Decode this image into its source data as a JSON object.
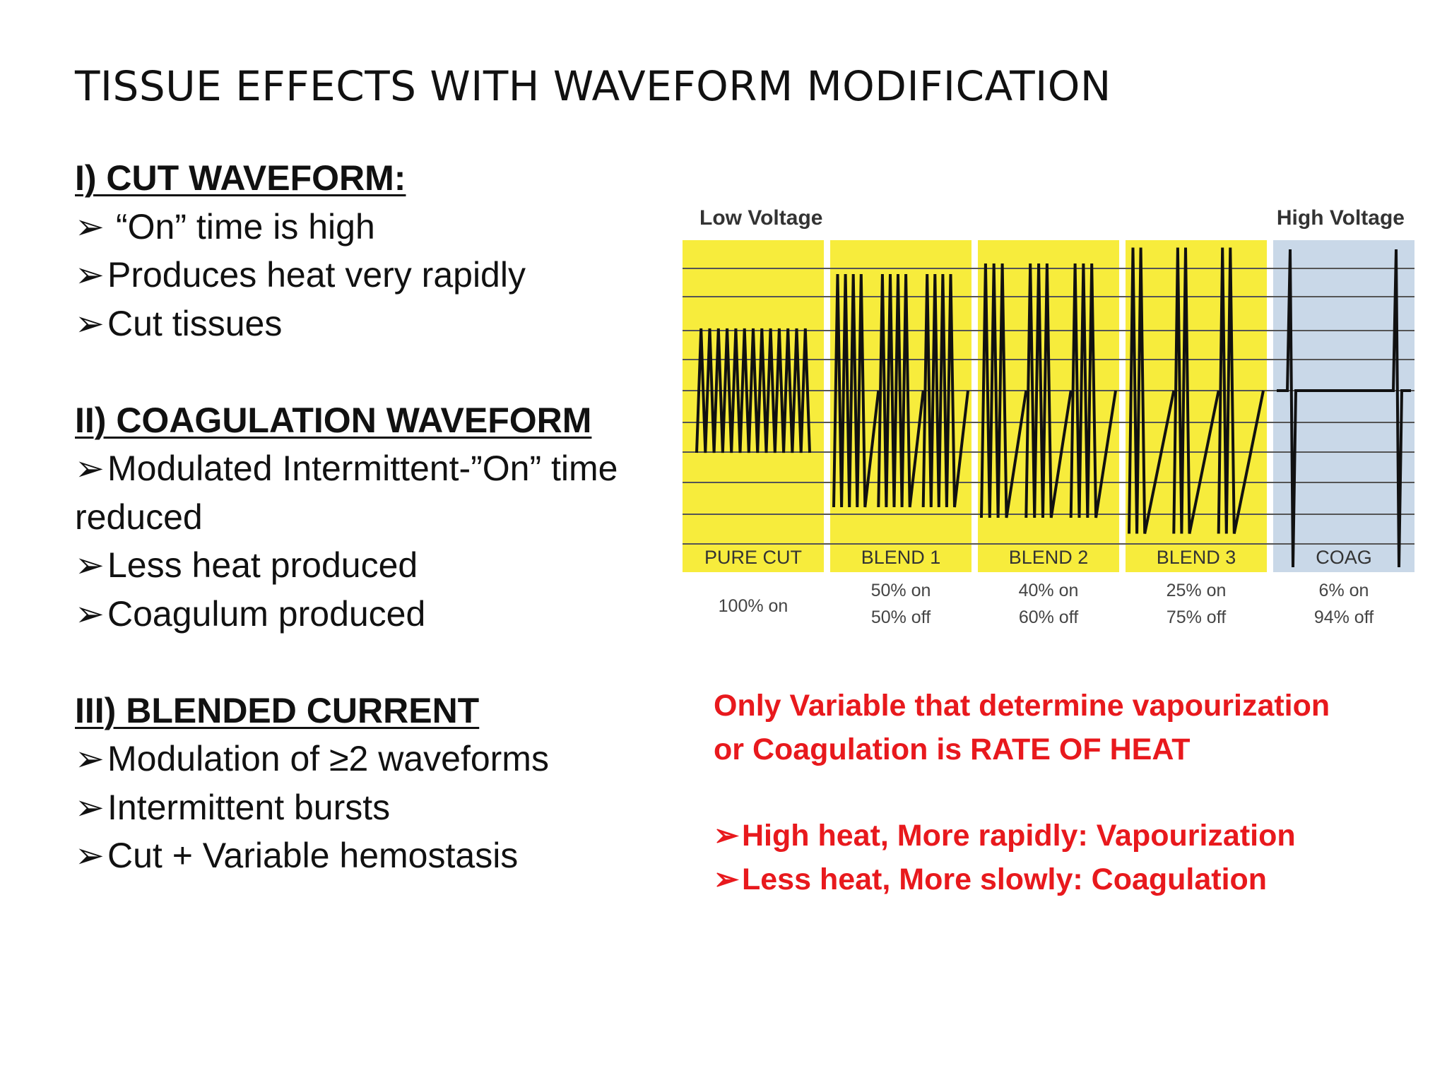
{
  "title": "TISSUE EFFECTS WITH WAVEFORM MODIFICATION",
  "left_sections": [
    {
      "heading": "I) CUT WAVEFORM:",
      "items": [
        "“On” time is high",
        "Produces heat very rapidly",
        "Cut tissues"
      ]
    },
    {
      "heading": "II) COAGULATION WAVEFORM",
      "items": [
        "Modulated Intermittent-”On” time reduced",
        "Less heat produced",
        "Coagulum produced"
      ]
    },
    {
      "heading": "III) BLENDED CURRENT",
      "items": [
        "Modulation of ≥2 waveforms",
        "Intermittent bursts",
        "Cut + Variable hemostasis"
      ]
    }
  ],
  "bullet_glyph": "➢",
  "figure": {
    "low_label": "Low Voltage",
    "high_label": "High Voltage",
    "panels": [
      {
        "name": "PURE CUT",
        "on": "100% on",
        "off": "",
        "duty": 1.0,
        "color": "#f7ec3c"
      },
      {
        "name": "BLEND 1",
        "on": "50% on",
        "off": "50% off",
        "duty": 0.5,
        "color": "#f7ec3c"
      },
      {
        "name": "BLEND 2",
        "on": "40% on",
        "off": "60% off",
        "duty": 0.4,
        "color": "#f7ec3c"
      },
      {
        "name": "BLEND 3",
        "on": "25% on",
        "off": "75% off",
        "duty": 0.25,
        "color": "#f7ec3c"
      },
      {
        "name": "COAG",
        "on": "6% on",
        "off": "94% off",
        "duty": 0.06,
        "color": "#c9d8e8"
      }
    ]
  },
  "note": {
    "line1": "Only Variable that determine vapourization",
    "line2": "or Coagulation is RATE OF HEAT",
    "bullets": [
      "High heat, More rapidly: Vapourization",
      "Less heat, More slowly: Coagulation"
    ]
  }
}
